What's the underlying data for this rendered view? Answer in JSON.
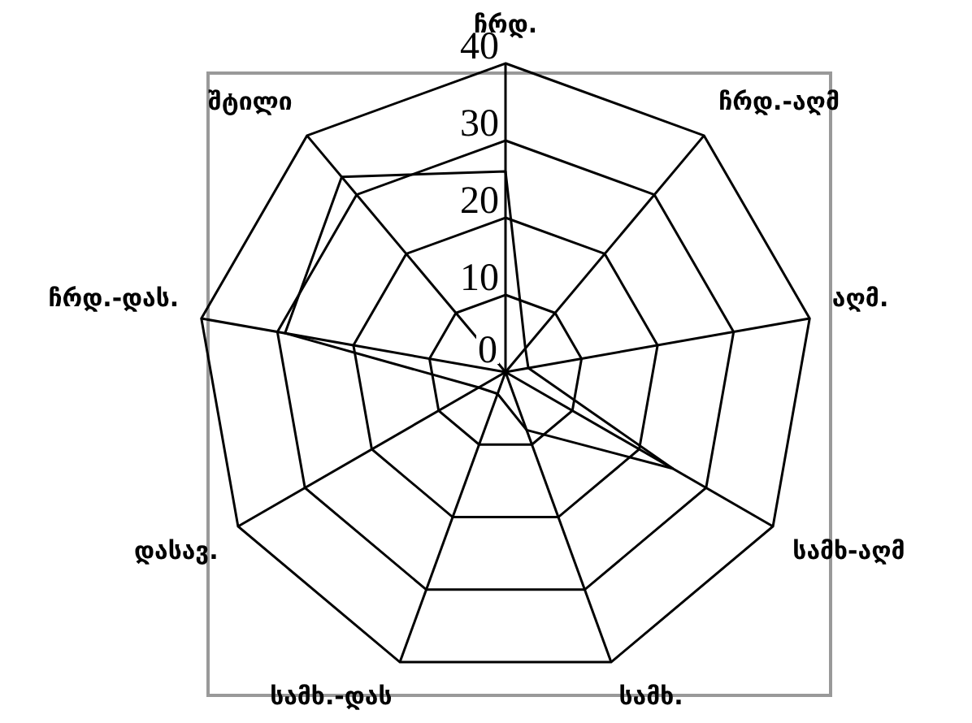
{
  "chart_data": {
    "type": "radar",
    "categories": [
      "ჩრდ.",
      "ჩრდ.-აღმ",
      "აღმ.",
      "სამხ-აღმ",
      "სამხ.",
      "სამხ.-დას",
      "დასავ.",
      "ჩრდ.-დას.",
      "შტილი"
    ],
    "series": [
      {
        "color": "#000000",
        "values": [
          26,
          4,
          3,
          25,
          8,
          3,
          4,
          29,
          33
        ]
      }
    ],
    "ylim": [
      0,
      40
    ],
    "yticks": [
      0,
      10,
      20,
      30,
      40
    ],
    "grid": true,
    "marker": "none",
    "legend": false
  }
}
